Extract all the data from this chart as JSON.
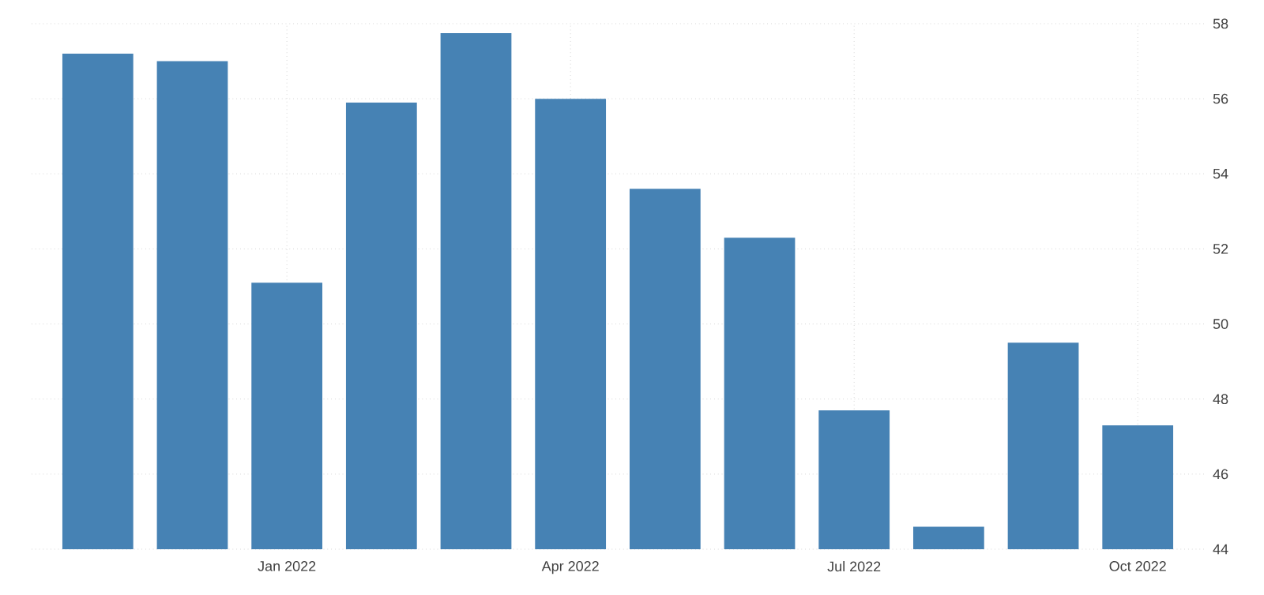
{
  "chart_data": {
    "type": "bar",
    "categories": [
      null,
      null,
      "Jan 2022",
      null,
      null,
      "Apr 2022",
      null,
      null,
      "Jul 2022",
      null,
      null,
      "Oct 2022"
    ],
    "values": [
      57.2,
      57.0,
      51.1,
      55.9,
      57.75,
      56.0,
      53.6,
      52.3,
      47.7,
      44.6,
      49.5,
      47.3
    ],
    "color": "#4682b4",
    "ylim": [
      44,
      58
    ],
    "yticks": [
      44,
      46,
      48,
      50,
      52,
      54,
      56,
      58
    ],
    "grid": true
  }
}
